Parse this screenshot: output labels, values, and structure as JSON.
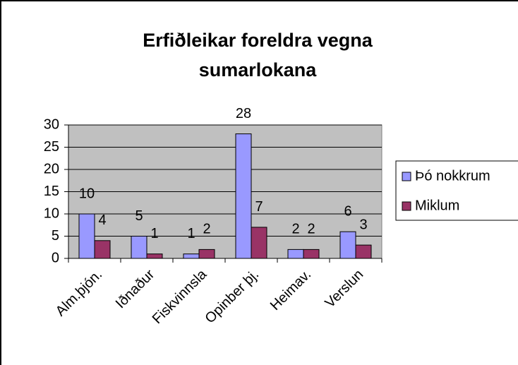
{
  "chart_data": {
    "type": "bar",
    "title": "Erfiðleikar foreldra vegna sumarlokana",
    "categories": [
      "Alm.þjón.",
      "Iðnaður",
      "Fiskvinnsla",
      "Opinber þj.",
      "Heimav.",
      "Verslun"
    ],
    "series": [
      {
        "name": "Þó nokkrum",
        "color": "#9999ff",
        "values": [
          10,
          5,
          1,
          28,
          2,
          6
        ]
      },
      {
        "name": "Miklum",
        "color": "#993366",
        "values": [
          4,
          1,
          2,
          7,
          2,
          3
        ]
      }
    ],
    "ylim": [
      0,
      30
    ],
    "yticks": [
      0,
      5,
      10,
      15,
      20,
      25,
      30
    ],
    "grid": true,
    "legend": "right"
  }
}
